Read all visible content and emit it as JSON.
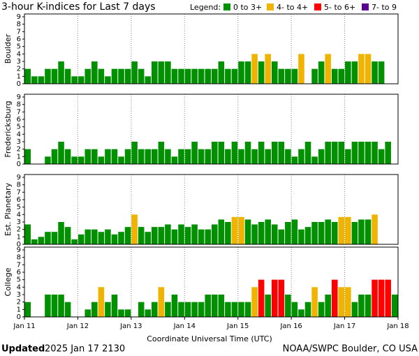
{
  "title": "3-hour K-indices for Last 7 days",
  "legend_label": "Legend:",
  "legend": [
    {
      "name": "0 to 3+",
      "color": "#009000"
    },
    {
      "name": "4- to 4+",
      "color": "#f0b400"
    },
    {
      "name": "5- to 6+",
      "color": "#ff0000"
    },
    {
      "name": "7- to 9",
      "color": "#5a0090"
    }
  ],
  "xlabel": "Coordinate Universal Time (UTC)",
  "xticks": [
    "Jan 11",
    "Jan 12",
    "Jan 13",
    "Jan 14",
    "Jan 15",
    "Jan 16",
    "Jan 17",
    "Jan 18"
  ],
  "footer": {
    "updated_label": "Updated",
    "updated_time": "2025 Jan 17 2130",
    "credit": "NOAA/SWPC Boulder, CO USA"
  },
  "chart_data": [
    {
      "type": "bar",
      "ylabel": "Boulder",
      "ylim": [
        0,
        9
      ],
      "yticks": [
        0,
        1,
        2,
        3,
        4,
        5,
        6,
        7,
        8,
        9
      ],
      "values": [
        2,
        1,
        1,
        2,
        2,
        3,
        2,
        1,
        1,
        2,
        3,
        2,
        1,
        2,
        2,
        2,
        3,
        2,
        1,
        3,
        3,
        3,
        2,
        2,
        2,
        2,
        2,
        2,
        2,
        3,
        2,
        2,
        3,
        3,
        4,
        3,
        4,
        3,
        2,
        2,
        2,
        4,
        0,
        2,
        3,
        4,
        2,
        2,
        3,
        3,
        4,
        4,
        3,
        3,
        0,
        0
      ]
    },
    {
      "type": "bar",
      "ylabel": "Fredericksburg",
      "ylim": [
        0,
        9
      ],
      "yticks": [
        0,
        1,
        2,
        3,
        4,
        5,
        6,
        7,
        8,
        9
      ],
      "values": [
        2,
        0,
        0,
        1,
        2,
        3,
        2,
        1,
        1,
        2,
        2,
        1,
        2,
        2,
        1,
        2,
        3,
        2,
        2,
        2,
        3,
        2,
        1,
        2,
        2,
        3,
        2,
        2,
        3,
        3,
        2,
        3,
        2,
        3,
        2,
        3,
        2,
        3,
        3,
        2,
        1,
        2,
        3,
        1,
        2,
        3,
        3,
        3,
        2,
        3,
        3,
        3,
        3,
        2,
        3,
        0
      ]
    },
    {
      "type": "bar",
      "ylabel": "Est. Planetary",
      "ylim": [
        0,
        9
      ],
      "yticks": [
        0,
        1,
        2,
        3,
        4,
        5,
        6,
        7,
        8,
        9
      ],
      "values": [
        2.67,
        0.67,
        1,
        1.67,
        1.67,
        3,
        2.33,
        0.67,
        1.33,
        2,
        2,
        1.67,
        2,
        1.33,
        1.67,
        2.33,
        4,
        2.33,
        1.67,
        2.33,
        2.33,
        2.67,
        2,
        2.67,
        2.33,
        2.67,
        2,
        2,
        2.67,
        3.33,
        3,
        3.67,
        3.67,
        3.33,
        2.67,
        3,
        3.33,
        2.67,
        2,
        3,
        3.33,
        2,
        2.33,
        3,
        3,
        3.33,
        3,
        3.67,
        3.67,
        3,
        3.33,
        3.33,
        4,
        0,
        0,
        0
      ]
    },
    {
      "type": "bar",
      "ylabel": "College",
      "ylim": [
        0,
        9
      ],
      "yticks": [
        0,
        1,
        2,
        3,
        4,
        5,
        6,
        7,
        8,
        9
      ],
      "values": [
        2,
        0,
        0,
        3,
        3,
        3,
        2,
        0,
        0,
        1,
        2,
        4,
        2,
        3,
        1,
        1,
        0,
        2,
        1,
        2,
        4,
        2,
        3,
        2,
        2,
        2,
        2,
        3,
        3,
        3,
        2,
        2,
        2,
        2,
        4,
        5,
        3,
        5,
        5,
        3,
        2,
        1,
        2,
        4,
        2,
        3,
        5,
        4,
        4,
        2,
        3,
        3,
        5,
        5,
        5,
        3
      ]
    }
  ]
}
